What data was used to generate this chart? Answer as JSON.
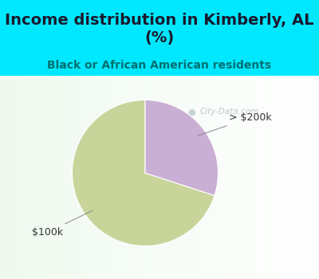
{
  "title": "Income distribution in Kimberly, AL\n(%)",
  "subtitle": "Black or African American residents",
  "slices": [
    70.0,
    30.0
  ],
  "labels": [
    "$100k",
    "> $200k"
  ],
  "colors": [
    "#c8d49a",
    "#c9afd4"
  ],
  "background_color": "#00e8ff",
  "title_color": "#1a1a2e",
  "subtitle_color": "#007070",
  "label_color": "#333333",
  "title_fontsize": 14,
  "subtitle_fontsize": 10,
  "label_fontsize": 9,
  "startangle": 90,
  "watermark": "City-Data.com"
}
